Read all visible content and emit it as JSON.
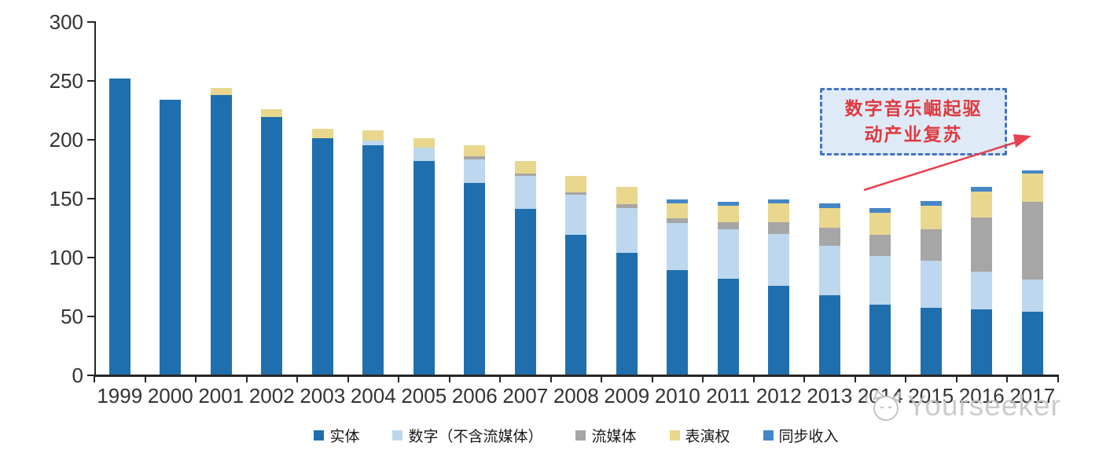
{
  "chart_data": {
    "type": "bar",
    "stacked": true,
    "title": "",
    "xlabel": "",
    "ylabel": "",
    "ylim": [
      0,
      300
    ],
    "yticks": [
      0,
      50,
      100,
      150,
      200,
      250,
      300
    ],
    "grid": false,
    "legend_position": "bottom",
    "categories": [
      "1999",
      "2000",
      "2001",
      "2002",
      "2003",
      "2004",
      "2005",
      "2006",
      "2007",
      "2008",
      "2009",
      "2010",
      "2011",
      "2012",
      "2013",
      "2014",
      "2015",
      "2016",
      "2017"
    ],
    "series": [
      {
        "name": "实体",
        "color": "#1F6FAE",
        "values": [
          252,
          234,
          238,
          219,
          201,
          195,
          182,
          163,
          141,
          119,
          104,
          89,
          82,
          76,
          68,
          60,
          57,
          56,
          54
        ]
      },
      {
        "name": "数字（不含流媒体）",
        "color": "#BDD7EE",
        "values": [
          0,
          0,
          0,
          0,
          0,
          4,
          11,
          20,
          28,
          34,
          38,
          40,
          42,
          44,
          42,
          41,
          40,
          32,
          27
        ]
      },
      {
        "name": "流媒体",
        "color": "#A6A6A6",
        "values": [
          0,
          0,
          0,
          0,
          0,
          0,
          0,
          3,
          2,
          2,
          3,
          4,
          6,
          10,
          15,
          18,
          27,
          46,
          66
        ]
      },
      {
        "name": "表演权",
        "color": "#E9D78E",
        "values": [
          0,
          0,
          6,
          7,
          8,
          9,
          8,
          9,
          11,
          14,
          15,
          13,
          14,
          16,
          17,
          19,
          20,
          22,
          24
        ]
      },
      {
        "name": "同步收入",
        "color": "#4586C6",
        "values": [
          0,
          0,
          0,
          0,
          0,
          0,
          0,
          0,
          0,
          0,
          0,
          3,
          3,
          3,
          4,
          4,
          4,
          4,
          3
        ]
      }
    ]
  },
  "annotation": {
    "line1": "数字音乐崛起驱",
    "line2": "动产业复苏",
    "border_color": "#4472C4",
    "fill_color": "#DEEBF7",
    "text_color": "#E0393E",
    "arrow_color": "#E8414D"
  },
  "watermark": {
    "text": "Yourseeker",
    "icon": "cat-face-icon",
    "color": "#C6C6C6"
  }
}
